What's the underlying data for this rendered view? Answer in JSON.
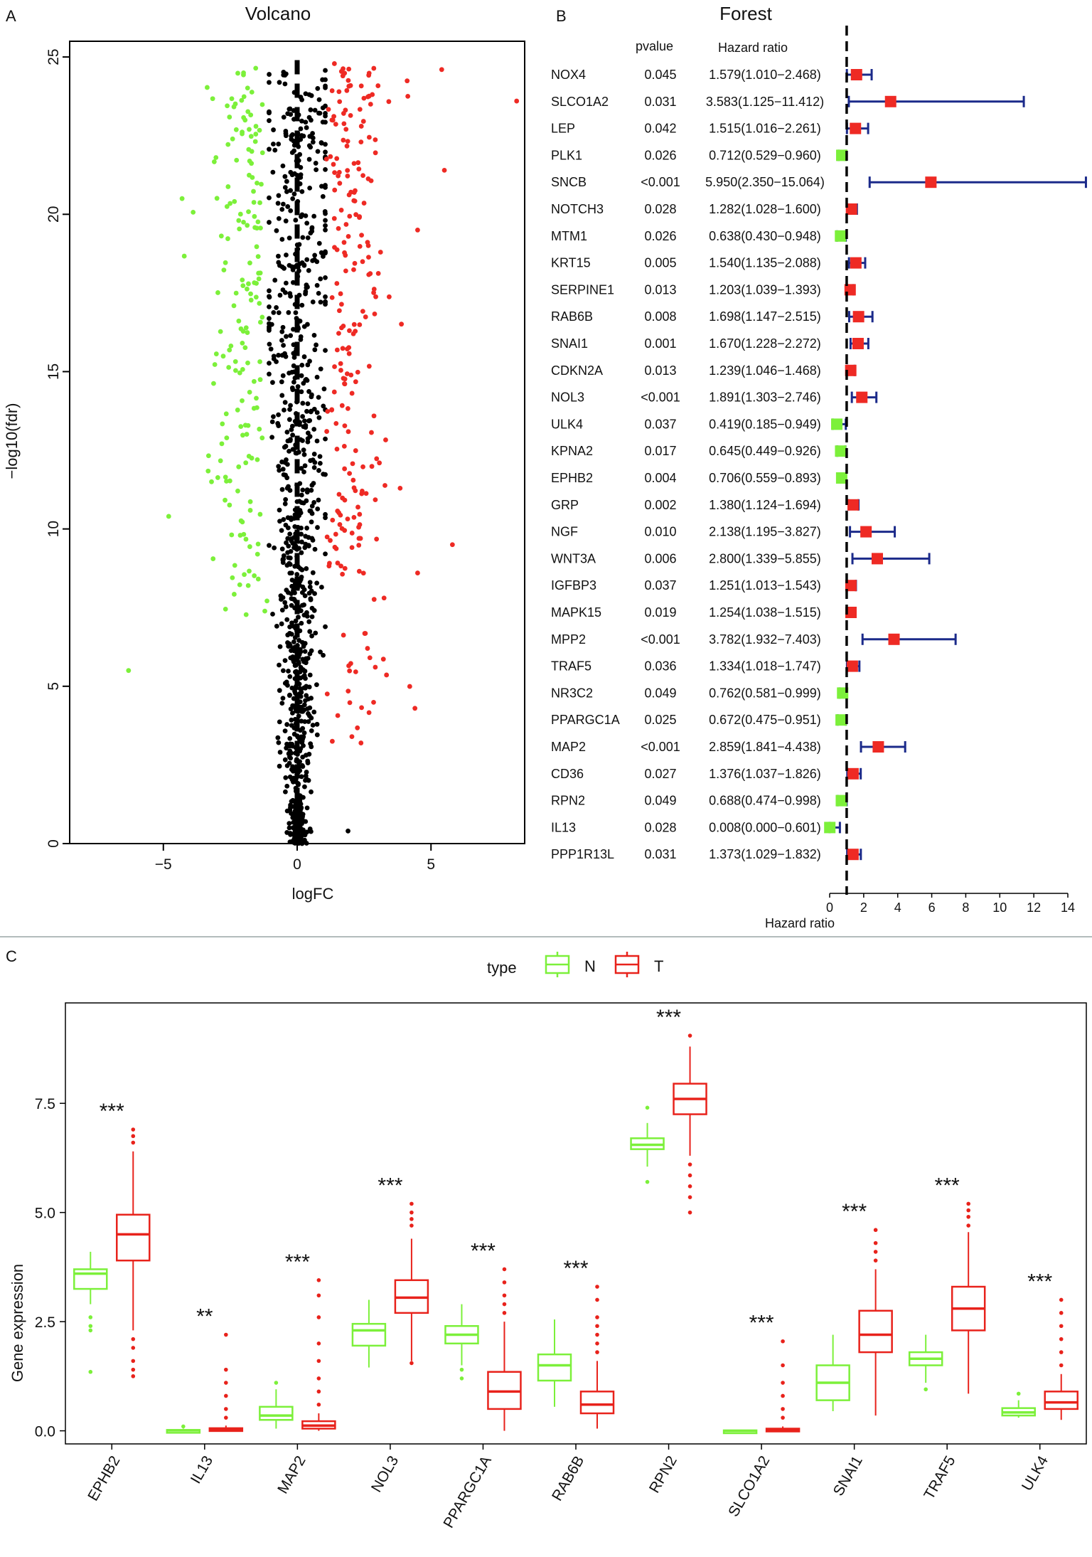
{
  "colors": {
    "up": "#ee2a24",
    "down": "#7cf03a",
    "ns": "#000000",
    "ci": "#1b2a8a",
    "N": "#7cf03a",
    "T": "#e8221b"
  },
  "chart_data": [
    {
      "panel": "A",
      "type": "scatter",
      "title": "Volcano",
      "xlabel": "logFC",
      "ylabel": "−log10(fdr)",
      "xlim": [
        -8.5,
        8.5
      ],
      "ylim": [
        0,
        25.5
      ],
      "xticks": [
        -5,
        0,
        5
      ],
      "yticks": [
        0,
        5,
        10,
        15,
        20,
        25
      ],
      "groups": [
        "down",
        "ns",
        "up"
      ],
      "notable_points": [
        {
          "x": 8.2,
          "y": 23.6,
          "group": "up"
        },
        {
          "x": 5.5,
          "y": 21.4,
          "group": "up"
        },
        {
          "x": 5.8,
          "y": 9.5,
          "group": "up"
        },
        {
          "x": 4.5,
          "y": 8.6,
          "group": "up"
        },
        {
          "x": 4.4,
          "y": 4.3,
          "group": "up"
        },
        {
          "x": 4.5,
          "y": 19.5,
          "group": "up"
        },
        {
          "x": 5.4,
          "y": 24.6,
          "group": "up"
        },
        {
          "x": -6.3,
          "y": 5.5,
          "group": "down"
        },
        {
          "x": -4.8,
          "y": 10.4,
          "group": "down"
        },
        {
          "x": -3.2,
          "y": 11.5,
          "group": "down"
        },
        {
          "x": -4.3,
          "y": 20.5,
          "group": "down"
        },
        {
          "x": 1.9,
          "y": 0.4,
          "group": "ns"
        }
      ]
    },
    {
      "panel": "B",
      "type": "forest",
      "title": "Forest",
      "col_pvalue": "pvalue",
      "col_hr": "Hazard ratio",
      "xlabel": "Hazard ratio",
      "xlim": [
        0,
        14
      ],
      "xticks": [
        0,
        2,
        4,
        6,
        8,
        10,
        12,
        14
      ],
      "ref_line": 1,
      "rows": [
        {
          "gene": "NOX4",
          "p": "0.045",
          "hr_text": "1.579(1.010−2.468)",
          "hr": 1.579,
          "lo": 1.01,
          "hi": 2.468
        },
        {
          "gene": "SLCO1A2",
          "p": "0.031",
          "hr_text": "3.583(1.125−11.412)",
          "hr": 3.583,
          "lo": 1.125,
          "hi": 11.412
        },
        {
          "gene": "LEP",
          "p": "0.042",
          "hr_text": "1.515(1.016−2.261)",
          "hr": 1.515,
          "lo": 1.016,
          "hi": 2.261
        },
        {
          "gene": "PLK1",
          "p": "0.026",
          "hr_text": "0.712(0.529−0.960)",
          "hr": 0.712,
          "lo": 0.529,
          "hi": 0.96
        },
        {
          "gene": "SNCB",
          "p": "<0.001",
          "hr_text": "5.950(2.350−15.064)",
          "hr": 5.95,
          "lo": 2.35,
          "hi": 15.064
        },
        {
          "gene": "NOTCH3",
          "p": "0.028",
          "hr_text": "1.282(1.028−1.600)",
          "hr": 1.282,
          "lo": 1.028,
          "hi": 1.6
        },
        {
          "gene": "MTM1",
          "p": "0.026",
          "hr_text": "0.638(0.430−0.948)",
          "hr": 0.638,
          "lo": 0.43,
          "hi": 0.948
        },
        {
          "gene": "KRT15",
          "p": "0.005",
          "hr_text": "1.540(1.135−2.088)",
          "hr": 1.54,
          "lo": 1.135,
          "hi": 2.088
        },
        {
          "gene": "SERPINE1",
          "p": "0.013",
          "hr_text": "1.203(1.039−1.393)",
          "hr": 1.203,
          "lo": 1.039,
          "hi": 1.393
        },
        {
          "gene": "RAB6B",
          "p": "0.008",
          "hr_text": "1.698(1.147−2.515)",
          "hr": 1.698,
          "lo": 1.147,
          "hi": 2.515
        },
        {
          "gene": "SNAI1",
          "p": "0.001",
          "hr_text": "1.670(1.228−2.272)",
          "hr": 1.67,
          "lo": 1.228,
          "hi": 2.272
        },
        {
          "gene": "CDKN2A",
          "p": "0.013",
          "hr_text": "1.239(1.046−1.468)",
          "hr": 1.239,
          "lo": 1.046,
          "hi": 1.468
        },
        {
          "gene": "NOL3",
          "p": "<0.001",
          "hr_text": "1.891(1.303−2.746)",
          "hr": 1.891,
          "lo": 1.303,
          "hi": 2.746
        },
        {
          "gene": "ULK4",
          "p": "0.037",
          "hr_text": "0.419(0.185−0.949)",
          "hr": 0.419,
          "lo": 0.185,
          "hi": 0.949
        },
        {
          "gene": "KPNA2",
          "p": "0.017",
          "hr_text": "0.645(0.449−0.926)",
          "hr": 0.645,
          "lo": 0.449,
          "hi": 0.926
        },
        {
          "gene": "EPHB2",
          "p": "0.004",
          "hr_text": "0.706(0.559−0.893)",
          "hr": 0.706,
          "lo": 0.559,
          "hi": 0.893
        },
        {
          "gene": "GRP",
          "p": "0.002",
          "hr_text": "1.380(1.124−1.694)",
          "hr": 1.38,
          "lo": 1.124,
          "hi": 1.694
        },
        {
          "gene": "NGF",
          "p": "0.010",
          "hr_text": "2.138(1.195−3.827)",
          "hr": 2.138,
          "lo": 1.195,
          "hi": 3.827
        },
        {
          "gene": "WNT3A",
          "p": "0.006",
          "hr_text": "2.800(1.339−5.855)",
          "hr": 2.8,
          "lo": 1.339,
          "hi": 5.855
        },
        {
          "gene": "IGFBP3",
          "p": "0.037",
          "hr_text": "1.251(1.013−1.543)",
          "hr": 1.251,
          "lo": 1.013,
          "hi": 1.543
        },
        {
          "gene": "MAPK15",
          "p": "0.019",
          "hr_text": "1.254(1.038−1.515)",
          "hr": 1.254,
          "lo": 1.038,
          "hi": 1.515
        },
        {
          "gene": "MPP2",
          "p": "<0.001",
          "hr_text": "3.782(1.932−7.403)",
          "hr": 3.782,
          "lo": 1.932,
          "hi": 7.403
        },
        {
          "gene": "TRAF5",
          "p": "0.036",
          "hr_text": "1.334(1.018−1.747)",
          "hr": 1.334,
          "lo": 1.018,
          "hi": 1.747
        },
        {
          "gene": "NR3C2",
          "p": "0.049",
          "hr_text": "0.762(0.581−0.999)",
          "hr": 0.762,
          "lo": 0.581,
          "hi": 0.999
        },
        {
          "gene": "PPARGC1A",
          "p": "0.025",
          "hr_text": "0.672(0.475−0.951)",
          "hr": 0.672,
          "lo": 0.475,
          "hi": 0.951
        },
        {
          "gene": "MAP2",
          "p": "<0.001",
          "hr_text": "2.859(1.841−4.438)",
          "hr": 2.859,
          "lo": 1.841,
          "hi": 4.438
        },
        {
          "gene": "CD36",
          "p": "0.027",
          "hr_text": "1.376(1.037−1.826)",
          "hr": 1.376,
          "lo": 1.037,
          "hi": 1.826
        },
        {
          "gene": "RPN2",
          "p": "0.049",
          "hr_text": "0.688(0.474−0.998)",
          "hr": 0.688,
          "lo": 0.474,
          "hi": 0.998
        },
        {
          "gene": "IL13",
          "p": "0.028",
          "hr_text": "0.008(0.000−0.601)",
          "hr": 0.008,
          "lo": 0.0,
          "hi": 0.601
        },
        {
          "gene": "PPP1R13L",
          "p": "0.031",
          "hr_text": "1.373(1.029−1.832)",
          "hr": 1.373,
          "lo": 1.029,
          "hi": 1.832
        }
      ]
    },
    {
      "panel": "C",
      "type": "boxplot",
      "legend_title": "type",
      "legend": [
        "N",
        "T"
      ],
      "ylabel": "Gene expression",
      "ylim": [
        -0.3,
        9.8
      ],
      "yticks": [
        0.0,
        2.5,
        5.0,
        7.5
      ],
      "ytick_labels": [
        "0.0",
        "2.5",
        "5.0",
        "7.5"
      ],
      "genes": [
        {
          "gene": "EPHB2",
          "sig": "***",
          "N": {
            "min": 2.9,
            "q1": 3.25,
            "med": 3.6,
            "q3": 3.7,
            "max": 4.1,
            "out": [
              2.6,
              2.4,
              2.3,
              1.35
            ]
          },
          "T": {
            "min": 2.3,
            "q1": 3.9,
            "med": 4.5,
            "q3": 4.95,
            "max": 6.4,
            "out": [
              6.6,
              6.75,
              6.9,
              2.1,
              1.9,
              1.6,
              1.4,
              1.25
            ]
          }
        },
        {
          "gene": "IL13",
          "sig": "**",
          "N": {
            "min": 0.0,
            "q1": 0.0,
            "med": 0.01,
            "q3": 0.02,
            "max": 0.05,
            "out": [
              0.1
            ]
          },
          "T": {
            "min": 0.0,
            "q1": 0.01,
            "med": 0.03,
            "q3": 0.06,
            "max": 0.12,
            "out": [
              0.3,
              0.5,
              0.8,
              1.1,
              1.4,
              2.2
            ]
          }
        },
        {
          "gene": "MAP2",
          "sig": "***",
          "N": {
            "min": 0.05,
            "q1": 0.25,
            "med": 0.35,
            "q3": 0.55,
            "max": 0.95,
            "out": [
              1.1
            ]
          },
          "T": {
            "min": 0.0,
            "q1": 0.05,
            "med": 0.12,
            "q3": 0.22,
            "max": 0.4,
            "out": [
              0.6,
              0.9,
              1.2,
              1.6,
              2.0,
              2.6,
              3.1,
              3.45
            ]
          }
        },
        {
          "gene": "NOL3",
          "sig": "***",
          "N": {
            "min": 1.45,
            "q1": 1.95,
            "med": 2.3,
            "q3": 2.45,
            "max": 3.0,
            "out": []
          },
          "T": {
            "min": 1.6,
            "q1": 2.7,
            "med": 3.05,
            "q3": 3.45,
            "max": 4.4,
            "out": [
              4.7,
              4.85,
              5.0,
              5.2,
              1.55
            ]
          }
        },
        {
          "gene": "PPARGC1A",
          "sig": "***",
          "N": {
            "min": 1.5,
            "q1": 2.0,
            "med": 2.2,
            "q3": 2.4,
            "max": 2.9,
            "out": [
              1.4,
              1.2
            ]
          },
          "T": {
            "min": 0.0,
            "q1": 0.5,
            "med": 0.9,
            "q3": 1.35,
            "max": 2.5,
            "out": [
              2.7,
              2.9,
              3.1,
              3.4,
              3.7
            ]
          }
        },
        {
          "gene": "RAB6B",
          "sig": "***",
          "N": {
            "min": 0.55,
            "q1": 1.15,
            "med": 1.5,
            "q3": 1.75,
            "max": 2.55,
            "out": []
          },
          "T": {
            "min": 0.05,
            "q1": 0.4,
            "med": 0.6,
            "q3": 0.9,
            "max": 1.6,
            "out": [
              1.8,
              2.0,
              2.2,
              2.4,
              2.6,
              3.0,
              3.3
            ]
          }
        },
        {
          "gene": "RPN2",
          "sig": "***",
          "N": {
            "min": 6.05,
            "q1": 6.45,
            "med": 6.55,
            "q3": 6.7,
            "max": 7.05,
            "out": [
              7.4,
              5.7
            ]
          },
          "T": {
            "min": 6.3,
            "q1": 7.25,
            "med": 7.6,
            "q3": 7.95,
            "max": 8.8,
            "out": [
              9.05,
              6.1,
              5.85,
              5.6,
              5.35,
              5.0
            ]
          }
        },
        {
          "gene": "SLCO1A2",
          "sig": "***",
          "N": {
            "min": 0.0,
            "q1": 0.0,
            "med": 0.0,
            "q3": 0.01,
            "max": 0.02,
            "out": []
          },
          "T": {
            "min": 0.0,
            "q1": 0.01,
            "med": 0.03,
            "q3": 0.05,
            "max": 0.1,
            "out": [
              0.3,
              0.5,
              0.8,
              1.1,
              1.5,
              2.05
            ]
          }
        },
        {
          "gene": "SNAI1",
          "sig": "***",
          "N": {
            "min": 0.45,
            "q1": 0.7,
            "med": 1.1,
            "q3": 1.5,
            "max": 2.2,
            "out": []
          },
          "T": {
            "min": 0.35,
            "q1": 1.8,
            "med": 2.2,
            "q3": 2.75,
            "max": 3.7,
            "out": [
              3.9,
              4.1,
              4.3,
              4.6
            ]
          }
        },
        {
          "gene": "TRAF5",
          "sig": "***",
          "N": {
            "min": 1.1,
            "q1": 1.5,
            "med": 1.65,
            "q3": 1.8,
            "max": 2.2,
            "out": [
              0.95
            ]
          },
          "T": {
            "min": 0.85,
            "q1": 2.3,
            "med": 2.8,
            "q3": 3.3,
            "max": 4.55,
            "out": [
              4.7,
              4.9,
              5.05,
              5.2
            ]
          }
        },
        {
          "gene": "ULK4",
          "sig": "***",
          "N": {
            "min": 0.3,
            "q1": 0.35,
            "med": 0.42,
            "q3": 0.52,
            "max": 0.7,
            "out": [
              0.85
            ]
          },
          "T": {
            "min": 0.25,
            "q1": 0.5,
            "med": 0.65,
            "q3": 0.9,
            "max": 1.3,
            "out": [
              1.5,
              1.8,
              2.1,
              2.4,
              2.7,
              3.0
            ]
          }
        }
      ]
    }
  ]
}
